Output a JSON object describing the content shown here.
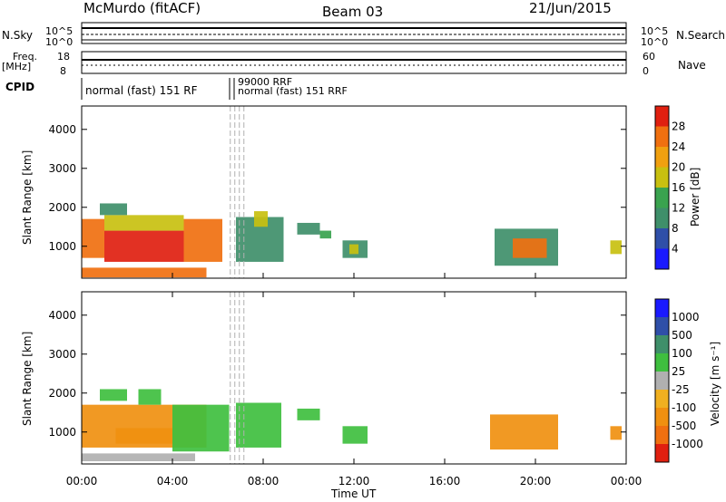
{
  "header": {
    "station": "McMurdo (fitACF)",
    "beam": "Beam 03",
    "date": "21/Jun/2015"
  },
  "small_panels": {
    "nsky_label": "N.Sky",
    "nsky_ticks": [
      "10^5",
      "10^0"
    ],
    "nsearch_label": "N.Search",
    "nsearch_ticks": [
      "10^5",
      "10^0"
    ],
    "freq_label": "Freq.",
    "freq_unit": "[MHz]",
    "freq_ticks": [
      "18",
      "8"
    ],
    "nave_label": "Nave",
    "nave_ticks": [
      "60",
      "0"
    ],
    "cpid_label": "CPID",
    "cpid_texts": [
      "normal (fast) 151 RF",
      "99000 RRF",
      "normal (fast) 151 RRF"
    ]
  },
  "colors": {
    "power": [
      "#1a1aff",
      "#2f4fa8",
      "#3f8f6a",
      "#3aa34f",
      "#c8c010",
      "#f0a010",
      "#f07010",
      "#e02010"
    ],
    "velocity": [
      "#e02010",
      "#f07010",
      "#f09010",
      "#f0b020",
      "#b0b0b0",
      "#3fbf3f",
      "#3f8f6a",
      "#2f4fa8",
      "#1a1aff"
    ],
    "ground_scatter": "#b0b0b0"
  },
  "chart_data": [
    {
      "type": "heatmap",
      "name": "power",
      "ylabel": "Slant Range [km]",
      "x_range_hours": [
        0,
        24
      ],
      "ylim": [
        180,
        4600
      ],
      "yticks": [
        1000,
        2000,
        3000,
        4000
      ],
      "colorbar": {
        "label": "Power [dB]",
        "range": [
          0,
          32
        ],
        "ticks": [
          4,
          8,
          12,
          16,
          20,
          24,
          28
        ]
      },
      "cells": [
        {
          "t0": 0.0,
          "t1": 1.0,
          "r0": 700,
          "r1": 1700,
          "v": 27
        },
        {
          "t0": 1.0,
          "t1": 4.5,
          "r0": 600,
          "r1": 1400,
          "v": 28
        },
        {
          "t0": 4.5,
          "t1": 6.2,
          "r0": 600,
          "r1": 1700,
          "v": 27
        },
        {
          "t0": 1.0,
          "t1": 4.5,
          "r0": 1400,
          "r1": 1800,
          "v": 18
        },
        {
          "t0": 0.8,
          "t1": 2.0,
          "r0": 1800,
          "r1": 2100,
          "v": 8
        },
        {
          "t0": 0.0,
          "t1": 5.5,
          "r0": 200,
          "r1": 450,
          "v": 26
        },
        {
          "t0": 6.8,
          "t1": 8.9,
          "r0": 600,
          "r1": 1750,
          "v": 9
        },
        {
          "t0": 7.6,
          "t1": 8.2,
          "r0": 1500,
          "r1": 1900,
          "v": 17
        },
        {
          "t0": 11.5,
          "t1": 12.6,
          "r0": 700,
          "r1": 1150,
          "v": 10
        },
        {
          "t0": 11.8,
          "t1": 12.2,
          "r0": 800,
          "r1": 1050,
          "v": 18
        },
        {
          "t0": 18.2,
          "t1": 21.0,
          "r0": 500,
          "r1": 1450,
          "v": 11
        },
        {
          "t0": 19.0,
          "t1": 20.5,
          "r0": 700,
          "r1": 1200,
          "v": 26
        },
        {
          "t0": 23.3,
          "t1": 23.8,
          "r0": 800,
          "r1": 1150,
          "v": 16
        },
        {
          "t0": 9.5,
          "t1": 10.5,
          "r0": 1300,
          "r1": 1600,
          "v": 8
        },
        {
          "t0": 10.5,
          "t1": 11.0,
          "r0": 1200,
          "r1": 1400,
          "v": 12
        }
      ]
    },
    {
      "type": "heatmap",
      "name": "velocity",
      "ylabel": "Slant Range [km]",
      "xlabel": "Time UT",
      "x_range_hours": [
        0,
        24
      ],
      "ylim": [
        180,
        4600
      ],
      "yticks": [
        1000,
        2000,
        3000,
        4000
      ],
      "xticks": [
        "00:00",
        "04:00",
        "08:00",
        "12:00",
        "16:00",
        "20:00",
        "00:00"
      ],
      "colorbar": {
        "label": "Velocity [m s⁻¹]",
        "ticks": [
          "-1000",
          "-500",
          "-100",
          "-25",
          "25",
          "100",
          "500",
          "1000"
        ]
      },
      "cells": [
        {
          "t0": 0.0,
          "t1": 5.5,
          "r0": 600,
          "r1": 1700,
          "v": -300
        },
        {
          "t0": 1.5,
          "t1": 4.0,
          "r0": 700,
          "r1": 1100,
          "v": -150
        },
        {
          "t0": 4.0,
          "t1": 6.5,
          "r0": 500,
          "r1": 1700,
          "v": 60
        },
        {
          "t0": 2.5,
          "t1": 3.5,
          "r0": 1700,
          "r1": 2100,
          "v": 100
        },
        {
          "t0": 0.8,
          "t1": 2.0,
          "r0": 1800,
          "r1": 2100,
          "v": 40
        },
        {
          "t0": 0.0,
          "t1": 5.0,
          "r0": 250,
          "r1": 450,
          "v": 0
        },
        {
          "t0": 6.8,
          "t1": 8.8,
          "r0": 600,
          "r1": 1750,
          "v": 80
        },
        {
          "t0": 11.5,
          "t1": 12.6,
          "r0": 700,
          "r1": 1150,
          "v": 60
        },
        {
          "t0": 18.0,
          "t1": 21.0,
          "r0": 550,
          "r1": 1450,
          "v": -200
        },
        {
          "t0": 23.3,
          "t1": 23.8,
          "r0": 800,
          "r1": 1150,
          "v": -100
        },
        {
          "t0": 9.5,
          "t1": 10.5,
          "r0": 1300,
          "r1": 1600,
          "v": 30
        }
      ]
    }
  ]
}
